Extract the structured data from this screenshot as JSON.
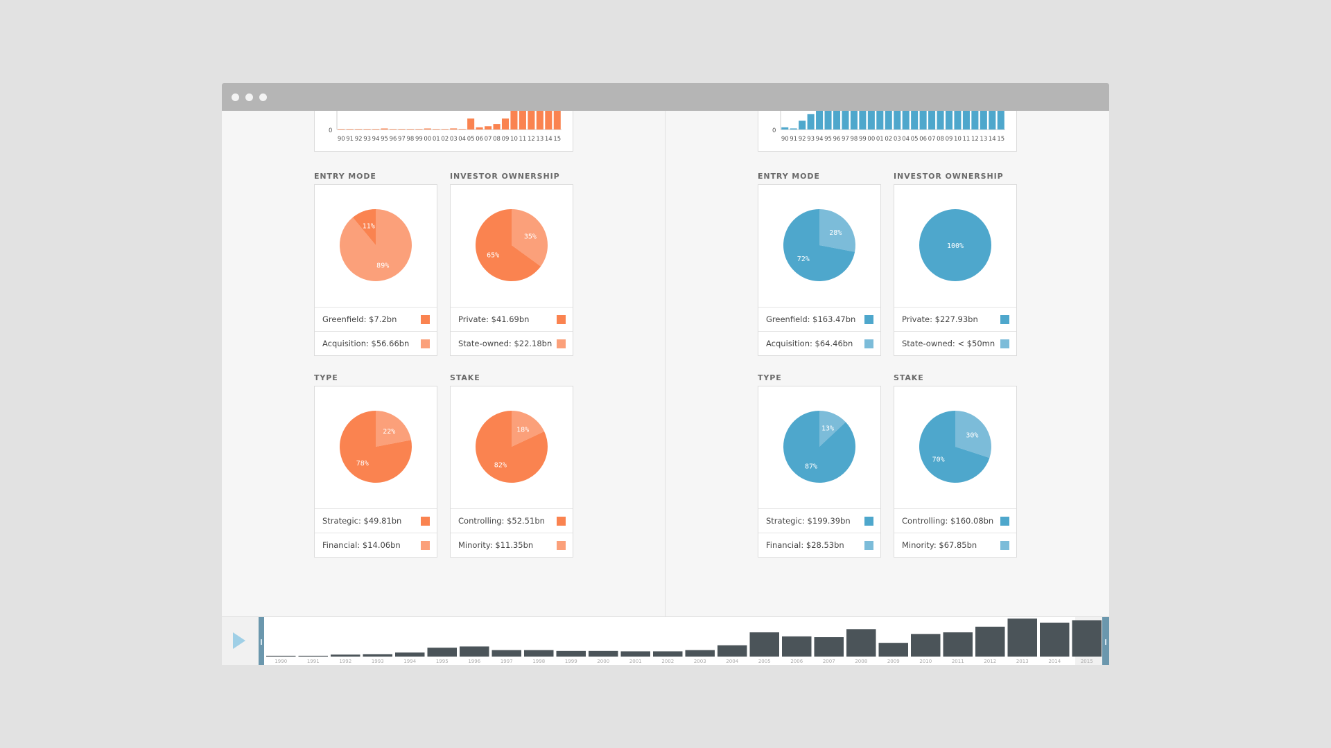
{
  "window": {
    "dots": 3
  },
  "colors": {
    "orange_dark": "#fa8350",
    "orange_light": "#fba07a",
    "blue_dark": "#4ea7cc",
    "blue_light": "#7cbcd9",
    "timeline_bar": "#4b5459",
    "handle": "#6b97ad",
    "play": "#9fcfe6"
  },
  "panels": [
    {
      "id": "left",
      "dark": "#fa8350",
      "light": "#fba07a",
      "mini_chart": {
        "type": "bar",
        "y_zero_label": "0",
        "x_ticks": [
          "90",
          "91",
          "92",
          "93",
          "94",
          "95",
          "96",
          "97",
          "98",
          "99",
          "00",
          "01",
          "02",
          "03",
          "04",
          "05",
          "06",
          "07",
          "08",
          "09",
          "10",
          "11",
          "12",
          "13",
          "14",
          "15"
        ],
        "values": [
          0,
          0,
          0,
          0,
          0,
          0.3,
          0,
          0,
          0,
          0,
          0.3,
          0,
          0,
          0.5,
          0,
          5,
          1,
          1.5,
          2.5,
          5,
          12,
          12,
          12,
          12,
          12,
          12
        ]
      },
      "groups": [
        {
          "title": "ENTRY MODE",
          "slices": [
            {
              "label": "11%",
              "value": 11,
              "shade": "dark"
            },
            {
              "label": "89%",
              "value": 89,
              "shade": "light"
            }
          ],
          "legend": [
            {
              "text": "Greenfield: $7.2bn",
              "shade": "dark"
            },
            {
              "text": "Acquisition: $56.66bn",
              "shade": "light"
            }
          ]
        },
        {
          "title": "INVESTOR OWNERSHIP",
          "slices": [
            {
              "label": "65%",
              "value": 65,
              "shade": "dark"
            },
            {
              "label": "35%",
              "value": 35,
              "shade": "light"
            }
          ],
          "legend": [
            {
              "text": "Private: $41.69bn",
              "shade": "dark"
            },
            {
              "text": "State-owned: $22.18bn",
              "shade": "light"
            }
          ]
        },
        {
          "title": "TYPE",
          "slices": [
            {
              "label": "78%",
              "value": 78,
              "shade": "dark"
            },
            {
              "label": "22%",
              "value": 22,
              "shade": "light"
            }
          ],
          "legend": [
            {
              "text": "Strategic: $49.81bn",
              "shade": "dark"
            },
            {
              "text": "Financial: $14.06bn",
              "shade": "light"
            }
          ]
        },
        {
          "title": "STAKE",
          "slices": [
            {
              "label": "82%",
              "value": 82,
              "shade": "dark"
            },
            {
              "label": "18%",
              "value": 18,
              "shade": "light"
            }
          ],
          "legend": [
            {
              "text": "Controlling: $52.51bn",
              "shade": "dark"
            },
            {
              "text": "Minority: $11.35bn",
              "shade": "light"
            }
          ]
        }
      ]
    },
    {
      "id": "right",
      "dark": "#4ea7cc",
      "light": "#7cbcd9",
      "mini_chart": {
        "type": "bar",
        "y_zero_label": "0",
        "x_ticks": [
          "90",
          "91",
          "92",
          "93",
          "94",
          "95",
          "96",
          "97",
          "98",
          "99",
          "00",
          "01",
          "02",
          "03",
          "04",
          "05",
          "06",
          "07",
          "08",
          "09",
          "10",
          "11",
          "12",
          "13",
          "14",
          "15"
        ],
        "values": [
          1,
          0.5,
          4,
          7,
          10,
          12,
          12,
          12,
          12,
          12,
          12,
          12,
          12,
          11.5,
          12,
          12,
          12,
          12,
          12,
          11.5,
          12,
          12,
          12,
          12,
          12,
          12
        ]
      },
      "groups": [
        {
          "title": "ENTRY MODE",
          "slices": [
            {
              "label": "72%",
              "value": 72,
              "shade": "dark"
            },
            {
              "label": "28%",
              "value": 28,
              "shade": "light"
            }
          ],
          "legend": [
            {
              "text": "Greenfield: $163.47bn",
              "shade": "dark"
            },
            {
              "text": "Acquisition: $64.46bn",
              "shade": "light"
            }
          ]
        },
        {
          "title": "INVESTOR OWNERSHIP",
          "slices": [
            {
              "label": "100%",
              "value": 100,
              "shade": "dark"
            }
          ],
          "legend": [
            {
              "text": "Private: $227.93bn",
              "shade": "dark"
            },
            {
              "text": "State-owned: < $50mn",
              "shade": "light"
            }
          ]
        },
        {
          "title": "TYPE",
          "slices": [
            {
              "label": "87%",
              "value": 87,
              "shade": "dark"
            },
            {
              "label": "13%",
              "value": 13,
              "shade": "light"
            }
          ],
          "legend": [
            {
              "text": "Strategic: $199.39bn",
              "shade": "dark"
            },
            {
              "text": "Financial: $28.53bn",
              "shade": "light"
            }
          ]
        },
        {
          "title": "STAKE",
          "slices": [
            {
              "label": "70%",
              "value": 70,
              "shade": "dark"
            },
            {
              "label": "30%",
              "value": 30,
              "shade": "light"
            }
          ],
          "legend": [
            {
              "text": "Controlling: $160.08bn",
              "shade": "dark"
            },
            {
              "text": "Minority: $67.85bn",
              "shade": "light"
            }
          ]
        }
      ]
    }
  ],
  "chart_data": [
    {
      "type": "bar",
      "x": [
        "1990",
        "1991",
        "1992",
        "1993",
        "1994",
        "1995",
        "1996",
        "1997",
        "1998",
        "1999",
        "2000",
        "2001",
        "2002",
        "2003",
        "2004",
        "2005",
        "2006",
        "2007",
        "2008",
        "2009",
        "2010",
        "2011",
        "2012",
        "2013",
        "2014",
        "2015"
      ],
      "values": [
        1,
        1,
        2.5,
        3,
        5,
        11,
        12.5,
        8,
        8,
        7,
        7,
        6.5,
        6.5,
        8,
        14,
        30,
        25,
        24,
        34,
        17,
        28,
        30,
        37,
        47,
        42,
        45
      ],
      "ylim": [
        0,
        48
      ]
    }
  ]
}
